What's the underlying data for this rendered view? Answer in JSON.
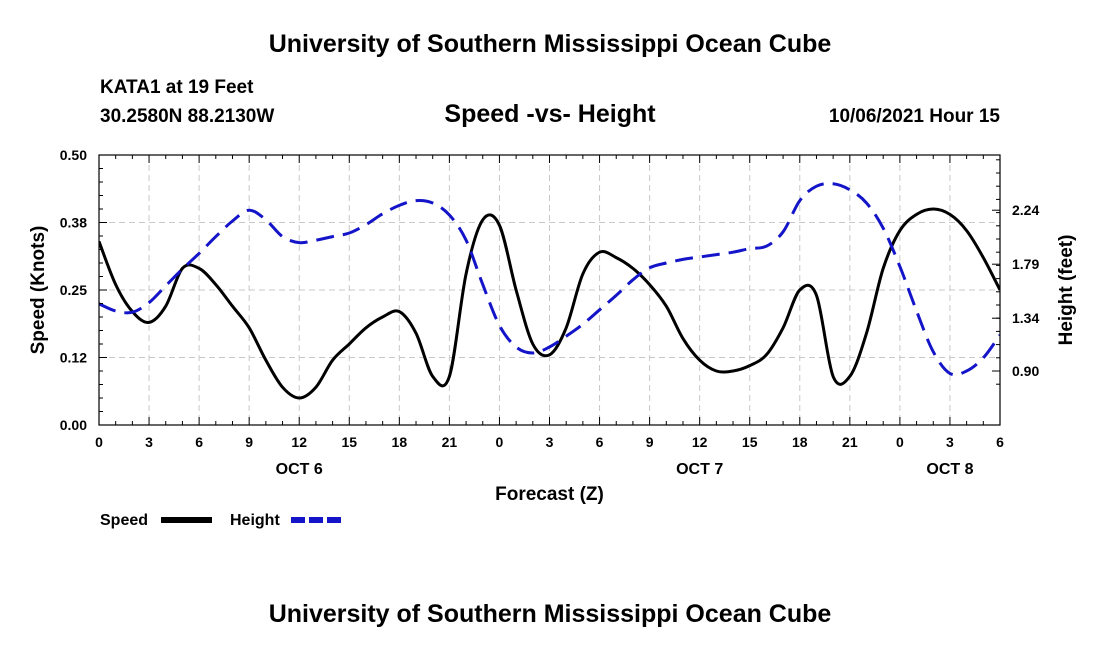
{
  "header": {
    "title": "University of Southern Mississippi Ocean Cube",
    "station": "KATA1 at 19 Feet",
    "coordinates": "30.2580N  88.2130W",
    "chart_title": "Speed -vs- Height",
    "timestamp": "10/06/2021 Hour 15"
  },
  "footer": {
    "title": "University of Southern Mississippi Ocean Cube"
  },
  "colors": {
    "speed": "#000000",
    "height": "#1414c8",
    "grid": "#c8c8c8"
  },
  "chart_data": {
    "type": "line",
    "title": "Speed -vs- Height",
    "xlabel": "Forecast (Z)",
    "ylabel": "Speed (Knots)",
    "y2label": "Height (feet)",
    "xlim": [
      0,
      54
    ],
    "ylim": [
      0,
      0.5
    ],
    "y2lim": [
      0.45,
      2.7
    ],
    "x_ticks": [
      0,
      3,
      6,
      9,
      12,
      15,
      18,
      21,
      24,
      27,
      30,
      33,
      36,
      39,
      42,
      45,
      48,
      51,
      54
    ],
    "x_tick_labels": [
      "0",
      "3",
      "6",
      "9",
      "12",
      "15",
      "18",
      "21",
      "0",
      "3",
      "6",
      "9",
      "12",
      "15",
      "18",
      "21",
      "0",
      "3",
      "6"
    ],
    "day_labels": [
      {
        "x": 12,
        "label": "OCT 6"
      },
      {
        "x": 36,
        "label": "OCT 7"
      },
      {
        "x": 51,
        "label": "OCT 8"
      }
    ],
    "y_ticks": [
      0.0,
      0.125,
      0.25,
      0.375,
      0.5
    ],
    "y_tick_labels": [
      "0.00",
      "0.12",
      "0.25",
      "0.38",
      "0.50"
    ],
    "y2_ticks": [
      0.9,
      1.34,
      1.79,
      2.24
    ],
    "y2_tick_labels": [
      "0.90",
      "1.34",
      "1.79",
      "2.24"
    ],
    "grid": true,
    "legend": {
      "position": "bottom-left",
      "entries": [
        "Speed",
        "Height"
      ]
    },
    "series": [
      {
        "name": "Speed",
        "axis": "left",
        "style": "solid",
        "x": [
          0,
          1,
          2,
          3,
          4,
          5,
          6,
          7,
          8,
          9,
          10,
          11,
          12,
          13,
          14,
          15,
          16,
          17,
          18,
          19,
          20,
          21,
          22,
          23,
          24,
          25,
          26,
          27,
          28,
          29,
          30,
          31,
          32,
          33,
          34,
          35,
          36,
          37,
          38,
          39,
          40,
          41,
          42,
          43,
          44,
          45,
          46,
          47,
          48,
          49,
          50,
          51,
          52,
          53,
          54
        ],
        "values": [
          0.34,
          0.26,
          0.21,
          0.19,
          0.22,
          0.29,
          0.29,
          0.26,
          0.22,
          0.18,
          0.12,
          0.07,
          0.05,
          0.07,
          0.12,
          0.15,
          0.18,
          0.2,
          0.21,
          0.17,
          0.09,
          0.09,
          0.28,
          0.38,
          0.37,
          0.25,
          0.15,
          0.13,
          0.18,
          0.28,
          0.32,
          0.31,
          0.29,
          0.26,
          0.22,
          0.16,
          0.12,
          0.1,
          0.1,
          0.11,
          0.13,
          0.18,
          0.25,
          0.24,
          0.09,
          0.09,
          0.17,
          0.29,
          0.36,
          0.39,
          0.4,
          0.39,
          0.36,
          0.31,
          0.25
        ]
      },
      {
        "name": "Height",
        "axis": "right",
        "style": "dashed",
        "x": [
          0,
          1,
          2,
          3,
          4,
          5,
          6,
          7,
          8,
          9,
          10,
          11,
          12,
          13,
          14,
          15,
          16,
          17,
          18,
          19,
          20,
          21,
          22,
          23,
          24,
          25,
          26,
          27,
          28,
          29,
          30,
          31,
          32,
          33,
          34,
          35,
          36,
          37,
          38,
          39,
          40,
          41,
          42,
          43,
          44,
          45,
          46,
          47,
          48,
          49,
          50,
          51,
          52,
          53,
          54
        ],
        "values": [
          1.46,
          1.4,
          1.39,
          1.47,
          1.61,
          1.75,
          1.88,
          2.02,
          2.15,
          2.24,
          2.16,
          2.02,
          1.97,
          1.99,
          2.02,
          2.05,
          2.12,
          2.21,
          2.28,
          2.32,
          2.3,
          2.2,
          1.99,
          1.62,
          1.28,
          1.1,
          1.05,
          1.1,
          1.19,
          1.29,
          1.41,
          1.53,
          1.66,
          1.76,
          1.8,
          1.83,
          1.85,
          1.87,
          1.89,
          1.92,
          1.94,
          2.06,
          2.32,
          2.44,
          2.46,
          2.41,
          2.3,
          2.09,
          1.77,
          1.4,
          1.06,
          0.88,
          0.9,
          1.01,
          1.2
        ]
      }
    ]
  }
}
